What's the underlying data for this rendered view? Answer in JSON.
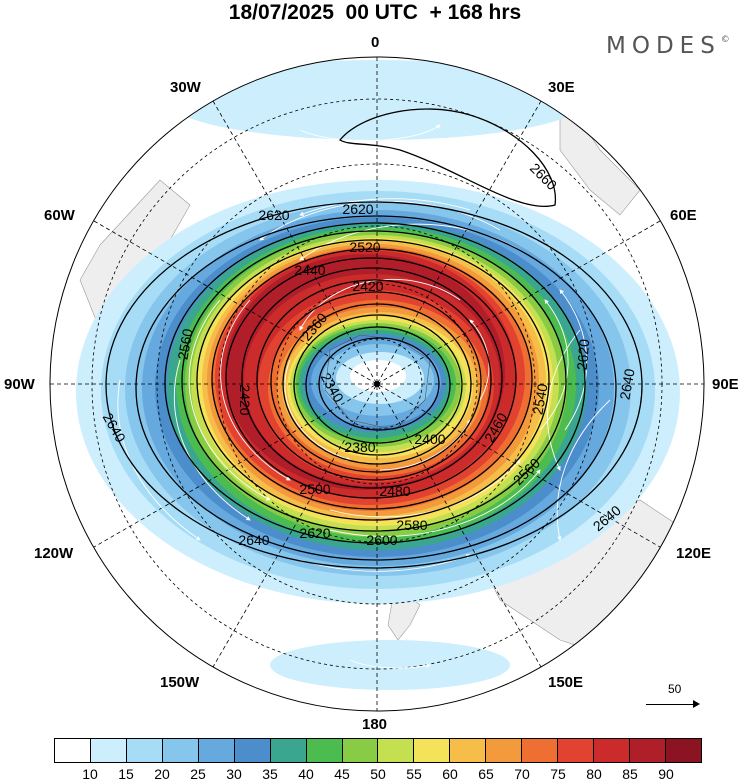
{
  "title": "18/07/2025  00 UTC  + 168 hrs",
  "brand": "MODES",
  "brand_mark": "©",
  "map": {
    "projection": "south polar stereographic",
    "longitude_labels": {
      "top": "0",
      "bottom": "180",
      "left": "90W",
      "right": "90E",
      "nw": "30W",
      "ne": "30E",
      "wnw": "60W",
      "ene": "60E",
      "wsw": "120W",
      "ese": "120E",
      "ssw": "150W",
      "sse": "150E"
    },
    "contour_labels": [
      "2660",
      "2620",
      "2620",
      "2600",
      "2580",
      "2540",
      "2520",
      "2500",
      "2480",
      "2460",
      "2440",
      "2420",
      "2420",
      "2400",
      "2380",
      "2360",
      "2340",
      "2560",
      "2560",
      "2620",
      "2620",
      "2640",
      "2640",
      "2640",
      "2640"
    ],
    "reference_vector": "50"
  },
  "colorbar": {
    "ticks": [
      "10",
      "15",
      "20",
      "25",
      "30",
      "35",
      "40",
      "45",
      "50",
      "55",
      "60",
      "65",
      "70",
      "75",
      "80",
      "85",
      "90"
    ],
    "colors": [
      "#ffffff",
      "#cdeefc",
      "#a7dcf6",
      "#86c5ec",
      "#66a9de",
      "#4b8ecb",
      "#3aa690",
      "#4cbc51",
      "#88cc45",
      "#c4df4f",
      "#f3e25a",
      "#f6bd49",
      "#f39a3c",
      "#ef6f33",
      "#e24330",
      "#cc2b2c",
      "#b01e2a",
      "#8c1422"
    ]
  }
}
